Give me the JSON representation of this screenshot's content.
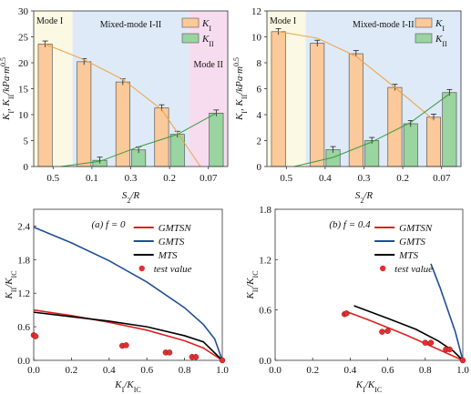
{
  "chart_data": [
    {
      "type": "bar",
      "categories": [
        "0.5",
        "0.1",
        "0.3",
        "0.2",
        "0.07"
      ],
      "xlabel": "S₂/R",
      "ylabel": "K_I, K_II/kPa·m^0.5",
      "ylim": [
        0,
        30
      ],
      "yticks": [
        0,
        5,
        10,
        15,
        20,
        25,
        30
      ],
      "grid": false,
      "legend_position": "top-right",
      "regions": [
        {
          "label": "Mode I",
          "from": 0,
          "to": 1,
          "color": "#fbf8e3"
        },
        {
          "label": "Mixed-mode I-II",
          "from": 1,
          "to": 4,
          "color": "#deeaf7"
        },
        {
          "label": "Mode II",
          "from": 4,
          "to": 5,
          "color": "#f7dcef"
        }
      ],
      "series": [
        {
          "name": "K_I",
          "color": "#fbc99a",
          "values": [
            23.6,
            20.2,
            16.3,
            11.3,
            0
          ]
        },
        {
          "name": "K_II",
          "color": "#9ad4a0",
          "values": [
            0,
            1.2,
            3.2,
            6.2,
            10.3
          ]
        }
      ],
      "trend_lines": [
        {
          "series": "K_I",
          "color": "#f0a040",
          "values": [
            23.6,
            20.6,
            16.8,
            11.0,
            0
          ]
        },
        {
          "series": "K_II",
          "color": "#3a9a40",
          "values": [
            0,
            1.0,
            3.8,
            6.2,
            10.3
          ]
        }
      ]
    },
    {
      "type": "bar",
      "categories": [
        "0.5",
        "0.4",
        "0.3",
        "0.2",
        "0.07"
      ],
      "xlabel": "S₂/R",
      "ylabel": "K_I, K_II/kPa·m^0.5",
      "ylim": [
        0,
        12
      ],
      "yticks": [
        0,
        2,
        4,
        6,
        8,
        10,
        12
      ],
      "grid": false,
      "legend_position": "top-right",
      "regions": [
        {
          "label": "Mode I",
          "from": 0,
          "to": 1,
          "color": "#fbf8e3"
        },
        {
          "label": "Mixed-mode I-II",
          "from": 1,
          "to": 5,
          "color": "#deeaf7"
        }
      ],
      "series": [
        {
          "name": "K_I",
          "color": "#fbc99a",
          "values": [
            10.4,
            9.5,
            8.7,
            6.1,
            3.8
          ]
        },
        {
          "name": "K_II",
          "color": "#9ad4a0",
          "values": [
            0,
            1.3,
            2.0,
            3.3,
            5.7
          ]
        }
      ],
      "trend_lines": [
        {
          "series": "K_I",
          "color": "#f0a040",
          "values": [
            10.4,
            9.9,
            8.5,
            6.1,
            3.6
          ]
        },
        {
          "series": "K_II",
          "color": "#3a9a40",
          "values": [
            0,
            0.7,
            1.9,
            3.4,
            5.6
          ]
        }
      ]
    },
    {
      "type": "line",
      "annotation": "(a) f = 0",
      "xlabel": "K_I/K_IC",
      "ylabel": "K_II/K_IC",
      "xlim": [
        0,
        1
      ],
      "ylim": [
        0,
        2.7
      ],
      "xticks": [
        0.0,
        0.2,
        0.4,
        0.6,
        0.8,
        1.0
      ],
      "yticks": [
        0.0,
        0.6,
        1.2,
        1.8,
        2.4
      ],
      "legend_position": "top-right",
      "series": [
        {
          "name": "GMTSN",
          "color": "#e02020",
          "points": [
            [
              0,
              0.9
            ],
            [
              0.2,
              0.8
            ],
            [
              0.4,
              0.68
            ],
            [
              0.6,
              0.54
            ],
            [
              0.8,
              0.35
            ],
            [
              0.9,
              0.22
            ],
            [
              1.0,
              0
            ]
          ]
        },
        {
          "name": "GMTS",
          "color": "#1f4e96",
          "points": [
            [
              0,
              2.38
            ],
            [
              0.2,
              2.1
            ],
            [
              0.4,
              1.78
            ],
            [
              0.6,
              1.4
            ],
            [
              0.8,
              0.94
            ],
            [
              0.9,
              0.64
            ],
            [
              0.96,
              0.38
            ],
            [
              1.0,
              0
            ]
          ]
        },
        {
          "name": "MTS",
          "color": "#000000",
          "points": [
            [
              0,
              0.86
            ],
            [
              0.2,
              0.78
            ],
            [
              0.4,
              0.7
            ],
            [
              0.6,
              0.6
            ],
            [
              0.8,
              0.44
            ],
            [
              0.9,
              0.33
            ],
            [
              1.0,
              0
            ]
          ]
        },
        {
          "name": "test value",
          "color": "#e03030",
          "type": "scatter",
          "points": [
            [
              0.0,
              0.45
            ],
            [
              0.01,
              0.43
            ],
            [
              0.47,
              0.26
            ],
            [
              0.49,
              0.27
            ],
            [
              0.7,
              0.14
            ],
            [
              0.72,
              0.14
            ],
            [
              0.84,
              0.06
            ],
            [
              0.86,
              0.06
            ],
            [
              1.0,
              0.0
            ]
          ]
        }
      ]
    },
    {
      "type": "line",
      "annotation": "(b) f = 0.4",
      "xlabel": "K_I/K_IC",
      "ylabel": "K_II/K_IC",
      "xlim": [
        0,
        1
      ],
      "ylim": [
        0,
        1.8
      ],
      "xticks": [
        0.0,
        0.2,
        0.4,
        0.6,
        0.8,
        1.0
      ],
      "yticks": [
        0.0,
        0.6,
        1.2,
        1.8
      ],
      "legend_position": "top-right",
      "series": [
        {
          "name": "GMTSN",
          "color": "#e02020",
          "points": [
            [
              0.38,
              0.58
            ],
            [
              0.5,
              0.48
            ],
            [
              0.6,
              0.39
            ],
            [
              0.7,
              0.3
            ],
            [
              0.8,
              0.2
            ],
            [
              0.9,
              0.1
            ],
            [
              1.0,
              0
            ]
          ]
        },
        {
          "name": "GMTS",
          "color": "#1f4e96",
          "points": [
            [
              0.83,
              1.15
            ],
            [
              0.88,
              0.86
            ],
            [
              0.92,
              0.6
            ],
            [
              0.96,
              0.34
            ],
            [
              1.0,
              0
            ]
          ]
        },
        {
          "name": "MTS",
          "color": "#000000",
          "points": [
            [
              0.42,
              0.65
            ],
            [
              0.6,
              0.5
            ],
            [
              0.75,
              0.37
            ],
            [
              0.87,
              0.23
            ],
            [
              0.95,
              0.11
            ],
            [
              1.0,
              0
            ]
          ]
        },
        {
          "name": "test value",
          "color": "#e03030",
          "type": "scatter",
          "points": [
            [
              0.37,
              0.55
            ],
            [
              0.38,
              0.56
            ],
            [
              0.57,
              0.34
            ],
            [
              0.6,
              0.35
            ],
            [
              0.8,
              0.21
            ],
            [
              0.83,
              0.21
            ],
            [
              0.91,
              0.13
            ],
            [
              0.93,
              0.13
            ],
            [
              1.0,
              0.0
            ]
          ]
        }
      ]
    }
  ]
}
